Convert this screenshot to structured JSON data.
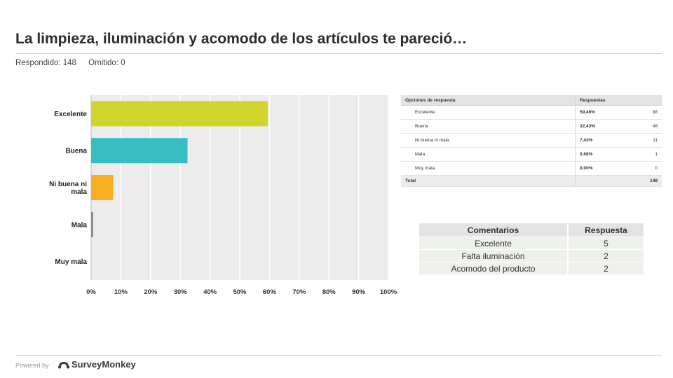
{
  "header": {
    "title": "La limpieza, iluminación y acomodo de los artículos te pareció…",
    "answered": "Respondido: 148",
    "skipped": "Omitido: 0"
  },
  "chart_data": {
    "type": "bar",
    "orientation": "horizontal",
    "categories": [
      "Excelente",
      "Buena",
      "Ni buena ni mala",
      "Mala",
      "Muy mala"
    ],
    "category_lines": [
      [
        "Excelente"
      ],
      [
        "Buena"
      ],
      [
        "Ni buena ni",
        "mala"
      ],
      [
        "Mala"
      ],
      [
        "Muy mala"
      ]
    ],
    "values": [
      59.46,
      32.43,
      7.43,
      0.68,
      0.0
    ],
    "colors": [
      "#d1d52b",
      "#36bec1",
      "#f6ae27",
      "#8a8a8a",
      "#cccccc"
    ],
    "xlim": [
      0,
      100
    ],
    "xticks": [
      "0%",
      "10%",
      "20%",
      "30%",
      "40%",
      "50%",
      "60%",
      "70%",
      "80%",
      "90%",
      "100%"
    ],
    "grid": true,
    "title": "",
    "xlabel": "",
    "ylabel": ""
  },
  "responses_table": {
    "headers": [
      "Opciones de respuesta",
      "Respuestas"
    ],
    "rows": [
      {
        "option": "Excelente",
        "percent": "59,46%",
        "count": "88"
      },
      {
        "option": "Buena",
        "percent": "32,43%",
        "count": "48"
      },
      {
        "option": "Ni buena ni mala",
        "percent": "7,43%",
        "count": "11"
      },
      {
        "option": "Mala",
        "percent": "0,68%",
        "count": "1"
      },
      {
        "option": "Muy mala",
        "percent": "0,00%",
        "count": "0"
      }
    ],
    "total_label": "Total",
    "total_value": "148"
  },
  "comments_table": {
    "headers": [
      "Comentarios",
      "Respuesta"
    ],
    "rows": [
      {
        "comment": "Excelente",
        "value": "5"
      },
      {
        "comment": "Falta iluminación",
        "value": "2"
      },
      {
        "comment": "Acomodo del producto",
        "value": "2"
      }
    ]
  },
  "footer": {
    "powered_by": "Powered by",
    "brand": "SurveyMonkey",
    "logo_icon": "monkey-logo-icon"
  }
}
